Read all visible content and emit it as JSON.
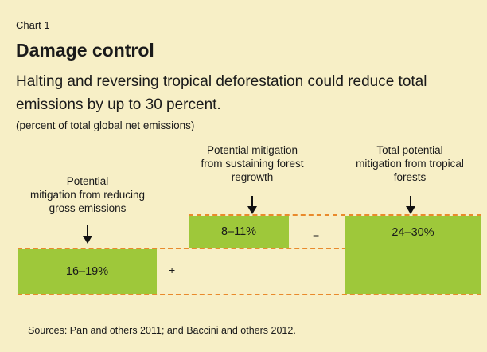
{
  "chart_data": {
    "type": "other",
    "chart_number": "Chart 1",
    "title": "Damage control",
    "subtitle": "Halting and reversing tropical deforestation could reduce total emissions by up to 30 percent.",
    "unit": "(percent of total global net emissions)",
    "components": [
      {
        "label_lines": [
          "Potential",
          "mitigation from reducing",
          "gross emissions"
        ],
        "range_label": "16–19%",
        "low": 16,
        "high": 19
      },
      {
        "label_lines": [
          "Potential mitigation",
          "from sustaining forest",
          "regrowth"
        ],
        "range_label": "8–11%",
        "low": 8,
        "high": 11
      },
      {
        "label_lines": [
          "Total potential",
          "mitigation from tropical",
          "forests"
        ],
        "range_label": "24–30%",
        "low": 24,
        "high": 30
      }
    ],
    "operators": [
      "+",
      "="
    ],
    "sources": "Sources: Pan and others 2011; and Baccini and others 2012."
  },
  "colors": {
    "background": "#f7efc6",
    "box_fill": "#9ec83a",
    "dash_line": "#e98a2c"
  }
}
